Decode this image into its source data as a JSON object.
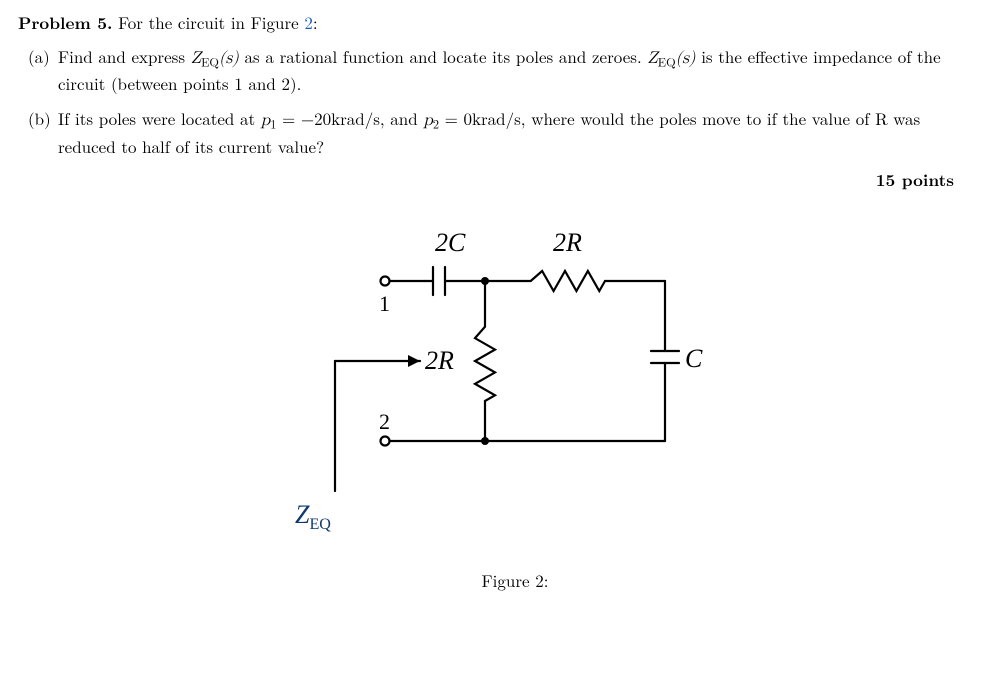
{
  "problem": {
    "label": "Problem 5.",
    "intro_a": "For the circuit in Figure ",
    "fig_link": "2",
    "intro_b": ":",
    "parts": [
      {
        "label": "(a)",
        "pre": "Find and express ",
        "zeq": "Z",
        "zeq_sub": "EQ",
        "arg": "(s)",
        "mid": " as a rational function and locate its poles and zeroes. ",
        "zeq2": "Z",
        "zeq2_sub": "EQ",
        "arg2": "(s)",
        "post": " is the effective impedance of the circuit (between points 1 and 2)."
      },
      {
        "label": "(b)",
        "pre": "If its poles were located at ",
        "p1": "p",
        "p1sub": "1",
        "p1eq": " = −20krad/s,  and ",
        "p2": "p",
        "p2sub": "2",
        "p2eq": " = 0krad/s, where would the poles move to if the value of R was reduced to half of its current value?"
      }
    ],
    "points": "15 points"
  },
  "circuit": {
    "labels": {
      "cap_2C": "2C",
      "res_2R_top": "2R",
      "res_2R_mid": "2R",
      "cap_C": "C",
      "node1": "1",
      "node2": "2",
      "zeq": "Z",
      "zeq_sub": "EQ"
    },
    "style": {
      "stroke": "#000000",
      "stroke_width": 2.2,
      "zeq_color": "#113a6e",
      "font_size_comp": 26,
      "font_size_node": 22,
      "font_family": "Georgia, serif"
    },
    "caption": "Figure 2:"
  }
}
